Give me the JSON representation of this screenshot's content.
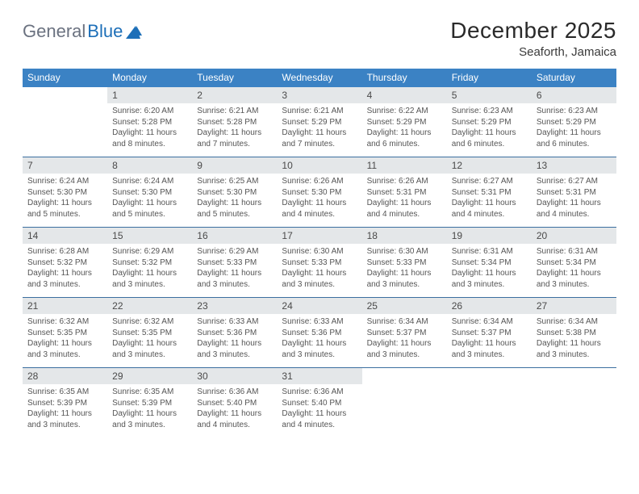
{
  "logo": {
    "part1": "General",
    "part2": "Blue"
  },
  "title": "December 2025",
  "location": "Seaforth, Jamaica",
  "colors": {
    "header_blue": "#3b82c4",
    "daynum_bg": "#e4e7e9",
    "row_divider": "#3b6fa0",
    "logo_gray": "#6b7280",
    "logo_blue": "#1d6fb8",
    "background": "#ffffff",
    "text_dark": "#333333",
    "text_muted": "#555555"
  },
  "weekdays": [
    "Sunday",
    "Monday",
    "Tuesday",
    "Wednesday",
    "Thursday",
    "Friday",
    "Saturday"
  ],
  "weeks": [
    [
      {
        "n": "",
        "empty": true
      },
      {
        "n": "1",
        "sunrise": "Sunrise: 6:20 AM",
        "sunset": "Sunset: 5:28 PM",
        "daylight": "Daylight: 11 hours and 8 minutes."
      },
      {
        "n": "2",
        "sunrise": "Sunrise: 6:21 AM",
        "sunset": "Sunset: 5:28 PM",
        "daylight": "Daylight: 11 hours and 7 minutes."
      },
      {
        "n": "3",
        "sunrise": "Sunrise: 6:21 AM",
        "sunset": "Sunset: 5:29 PM",
        "daylight": "Daylight: 11 hours and 7 minutes."
      },
      {
        "n": "4",
        "sunrise": "Sunrise: 6:22 AM",
        "sunset": "Sunset: 5:29 PM",
        "daylight": "Daylight: 11 hours and 6 minutes."
      },
      {
        "n": "5",
        "sunrise": "Sunrise: 6:23 AM",
        "sunset": "Sunset: 5:29 PM",
        "daylight": "Daylight: 11 hours and 6 minutes."
      },
      {
        "n": "6",
        "sunrise": "Sunrise: 6:23 AM",
        "sunset": "Sunset: 5:29 PM",
        "daylight": "Daylight: 11 hours and 6 minutes."
      }
    ],
    [
      {
        "n": "7",
        "sunrise": "Sunrise: 6:24 AM",
        "sunset": "Sunset: 5:30 PM",
        "daylight": "Daylight: 11 hours and 5 minutes."
      },
      {
        "n": "8",
        "sunrise": "Sunrise: 6:24 AM",
        "sunset": "Sunset: 5:30 PM",
        "daylight": "Daylight: 11 hours and 5 minutes."
      },
      {
        "n": "9",
        "sunrise": "Sunrise: 6:25 AM",
        "sunset": "Sunset: 5:30 PM",
        "daylight": "Daylight: 11 hours and 5 minutes."
      },
      {
        "n": "10",
        "sunrise": "Sunrise: 6:26 AM",
        "sunset": "Sunset: 5:30 PM",
        "daylight": "Daylight: 11 hours and 4 minutes."
      },
      {
        "n": "11",
        "sunrise": "Sunrise: 6:26 AM",
        "sunset": "Sunset: 5:31 PM",
        "daylight": "Daylight: 11 hours and 4 minutes."
      },
      {
        "n": "12",
        "sunrise": "Sunrise: 6:27 AM",
        "sunset": "Sunset: 5:31 PM",
        "daylight": "Daylight: 11 hours and 4 minutes."
      },
      {
        "n": "13",
        "sunrise": "Sunrise: 6:27 AM",
        "sunset": "Sunset: 5:31 PM",
        "daylight": "Daylight: 11 hours and 4 minutes."
      }
    ],
    [
      {
        "n": "14",
        "sunrise": "Sunrise: 6:28 AM",
        "sunset": "Sunset: 5:32 PM",
        "daylight": "Daylight: 11 hours and 3 minutes."
      },
      {
        "n": "15",
        "sunrise": "Sunrise: 6:29 AM",
        "sunset": "Sunset: 5:32 PM",
        "daylight": "Daylight: 11 hours and 3 minutes."
      },
      {
        "n": "16",
        "sunrise": "Sunrise: 6:29 AM",
        "sunset": "Sunset: 5:33 PM",
        "daylight": "Daylight: 11 hours and 3 minutes."
      },
      {
        "n": "17",
        "sunrise": "Sunrise: 6:30 AM",
        "sunset": "Sunset: 5:33 PM",
        "daylight": "Daylight: 11 hours and 3 minutes."
      },
      {
        "n": "18",
        "sunrise": "Sunrise: 6:30 AM",
        "sunset": "Sunset: 5:33 PM",
        "daylight": "Daylight: 11 hours and 3 minutes."
      },
      {
        "n": "19",
        "sunrise": "Sunrise: 6:31 AM",
        "sunset": "Sunset: 5:34 PM",
        "daylight": "Daylight: 11 hours and 3 minutes."
      },
      {
        "n": "20",
        "sunrise": "Sunrise: 6:31 AM",
        "sunset": "Sunset: 5:34 PM",
        "daylight": "Daylight: 11 hours and 3 minutes."
      }
    ],
    [
      {
        "n": "21",
        "sunrise": "Sunrise: 6:32 AM",
        "sunset": "Sunset: 5:35 PM",
        "daylight": "Daylight: 11 hours and 3 minutes."
      },
      {
        "n": "22",
        "sunrise": "Sunrise: 6:32 AM",
        "sunset": "Sunset: 5:35 PM",
        "daylight": "Daylight: 11 hours and 3 minutes."
      },
      {
        "n": "23",
        "sunrise": "Sunrise: 6:33 AM",
        "sunset": "Sunset: 5:36 PM",
        "daylight": "Daylight: 11 hours and 3 minutes."
      },
      {
        "n": "24",
        "sunrise": "Sunrise: 6:33 AM",
        "sunset": "Sunset: 5:36 PM",
        "daylight": "Daylight: 11 hours and 3 minutes."
      },
      {
        "n": "25",
        "sunrise": "Sunrise: 6:34 AM",
        "sunset": "Sunset: 5:37 PM",
        "daylight": "Daylight: 11 hours and 3 minutes."
      },
      {
        "n": "26",
        "sunrise": "Sunrise: 6:34 AM",
        "sunset": "Sunset: 5:37 PM",
        "daylight": "Daylight: 11 hours and 3 minutes."
      },
      {
        "n": "27",
        "sunrise": "Sunrise: 6:34 AM",
        "sunset": "Sunset: 5:38 PM",
        "daylight": "Daylight: 11 hours and 3 minutes."
      }
    ],
    [
      {
        "n": "28",
        "sunrise": "Sunrise: 6:35 AM",
        "sunset": "Sunset: 5:39 PM",
        "daylight": "Daylight: 11 hours and 3 minutes."
      },
      {
        "n": "29",
        "sunrise": "Sunrise: 6:35 AM",
        "sunset": "Sunset: 5:39 PM",
        "daylight": "Daylight: 11 hours and 3 minutes."
      },
      {
        "n": "30",
        "sunrise": "Sunrise: 6:36 AM",
        "sunset": "Sunset: 5:40 PM",
        "daylight": "Daylight: 11 hours and 4 minutes."
      },
      {
        "n": "31",
        "sunrise": "Sunrise: 6:36 AM",
        "sunset": "Sunset: 5:40 PM",
        "daylight": "Daylight: 11 hours and 4 minutes."
      },
      {
        "n": "",
        "empty": true
      },
      {
        "n": "",
        "empty": true
      },
      {
        "n": "",
        "empty": true
      }
    ]
  ]
}
